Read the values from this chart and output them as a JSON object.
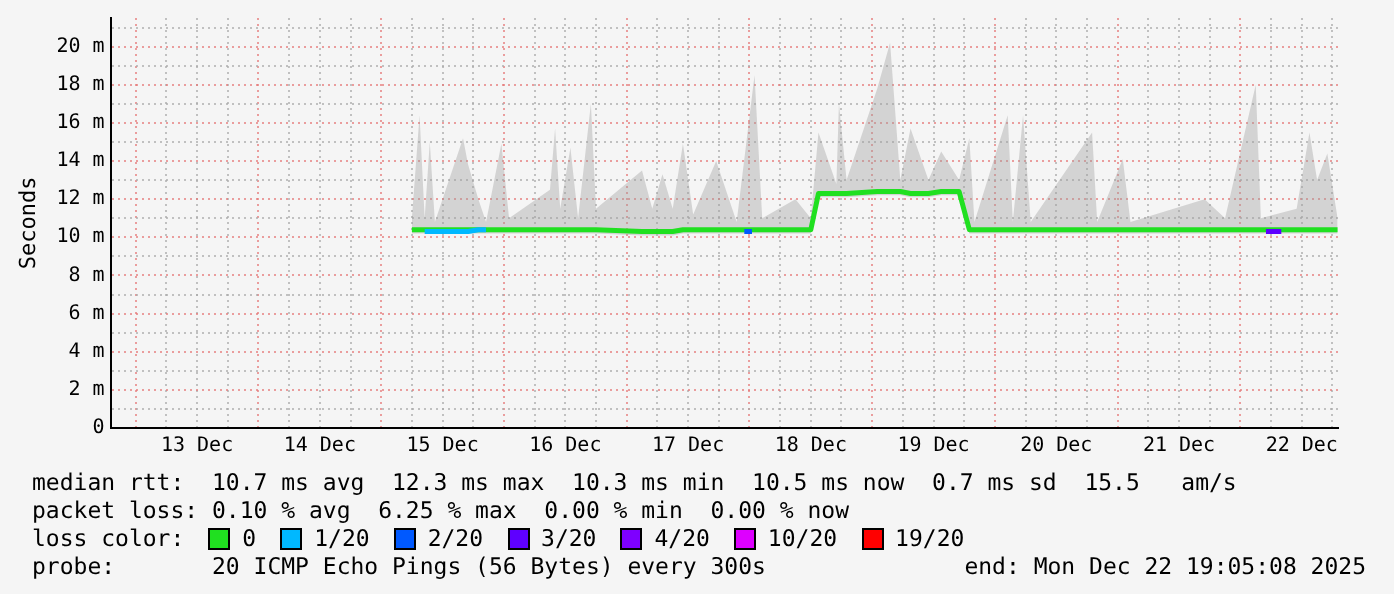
{
  "chart_data": {
    "type": "line",
    "ylabel": "Seconds",
    "legend_title": "loss color:",
    "legend": "bottom",
    "grid": true,
    "marker": "none",
    "line_style": "solid",
    "x": [
      "2025-12-15T06:00",
      "2025-12-15T07:30",
      "2025-12-15T08:30",
      "2025-12-15T09:30",
      "2025-12-15T10:30",
      "2025-12-15T16:00",
      "2025-12-15T17:00",
      "2025-12-15T19:00",
      "2025-12-15T20:30",
      "2025-12-15T23:30",
      "2025-12-16T01:00",
      "2025-12-16T09:00",
      "2025-12-16T10:00",
      "2025-12-16T11:00",
      "2025-12-16T13:00",
      "2025-12-16T14:30",
      "2025-12-16T17:00",
      "2025-12-16T18:00",
      "2025-12-17T03:00",
      "2025-12-17T05:00",
      "2025-12-17T07:00",
      "2025-12-17T09:00",
      "2025-12-17T11:00",
      "2025-12-17T13:00",
      "2025-12-17T17:30",
      "2025-12-17T21:30",
      "2025-12-18T01:00",
      "2025-12-18T02:30",
      "2025-12-18T09:00",
      "2025-12-18T12:00",
      "2025-12-18T13:30",
      "2025-12-18T17:00",
      "2025-12-18T17:30",
      "2025-12-18T19:00",
      "2025-12-19T01:00",
      "2025-12-19T03:30",
      "2025-12-19T05:30",
      "2025-12-19T07:30",
      "2025-12-19T11:00",
      "2025-12-19T13:30",
      "2025-12-19T17:00",
      "2025-12-19T19:00",
      "2025-12-19T20:00",
      "2025-12-20T02:30",
      "2025-12-20T03:30",
      "2025-12-20T05:30",
      "2025-12-20T07:00",
      "2025-12-20T19:00",
      "2025-12-20T20:00",
      "2025-12-21T01:00",
      "2025-12-21T02:30",
      "2025-12-21T17:00",
      "2025-12-21T21:00",
      "2025-12-22T03:00",
      "2025-12-22T04:00",
      "2025-12-22T11:00",
      "2025-12-22T13:30",
      "2025-12-22T15:00",
      "2025-12-22T17:00",
      "2025-12-22T19:00"
    ],
    "series": [
      {
        "name": "0",
        "color": "#20e020",
        "values": [
          10.4,
          10.4,
          10.4,
          10.4,
          10.4,
          10.4,
          10.4,
          10.4,
          10.4,
          10.4,
          10.4,
          10.4,
          10.4,
          10.4,
          10.4,
          10.4,
          10.4,
          10.4,
          10.3,
          10.3,
          10.3,
          10.3,
          10.4,
          10.4,
          10.4,
          10.4,
          10.4,
          10.4,
          10.4,
          10.4,
          12.3,
          12.3,
          12.3,
          12.3,
          12.4,
          12.4,
          12.4,
          12.3,
          12.3,
          12.4,
          12.4,
          10.4,
          10.4,
          10.4,
          10.4,
          10.4,
          10.4,
          10.4,
          10.4,
          10.4,
          10.4,
          10.4,
          10.4,
          10.4,
          10.4,
          10.4,
          10.4,
          10.4,
          10.4,
          10.4
        ],
        "lower": [
          10.2,
          10.2,
          10.2,
          10.2,
          10.2,
          10.2,
          10.2,
          10.2,
          10.2,
          10.2,
          10.2,
          10.2,
          10.2,
          10.2,
          10.2,
          10.2,
          10.2,
          10.2,
          10.1,
          10.1,
          10.1,
          10.1,
          10.2,
          10.2,
          10.2,
          10.2,
          10.2,
          10.2,
          10.2,
          10.2,
          12.1,
          12.1,
          12.1,
          12.1,
          12.2,
          12.2,
          12.2,
          12.1,
          12.1,
          12.2,
          12.2,
          10.2,
          10.2,
          10.2,
          10.2,
          10.2,
          10.2,
          10.2,
          10.2,
          10.2,
          10.2,
          10.2,
          10.2,
          10.2,
          10.2,
          10.2,
          10.2,
          10.2,
          10.2,
          10.2
        ],
        "upper": [
          11.0,
          16.4,
          11.0,
          15.0,
          10.8,
          15.2,
          13.8,
          12.0,
          10.8,
          14.9,
          11.0,
          12.5,
          15.7,
          11.5,
          14.7,
          11.0,
          17.0,
          11.5,
          13.5,
          11.5,
          13.3,
          11.5,
          14.9,
          11.2,
          14.0,
          10.8,
          18.5,
          11.0,
          12.0,
          11.0,
          15.5,
          12.8,
          17.0,
          13.0,
          17.8,
          20.2,
          13.0,
          15.7,
          13.0,
          14.5,
          13.0,
          15.2,
          10.8,
          16.4,
          10.8,
          16.4,
          10.8,
          15.5,
          10.8,
          14.1,
          10.8,
          12.0,
          11.0,
          18.0,
          11.0,
          11.5,
          15.5,
          13.0,
          14.4,
          11.0
        ]
      },
      {
        "name": "1/20",
        "color": "#00b8ff",
        "x": [
          "2025-12-15T08:30",
          "2025-12-15T09:30",
          "2025-12-15T10:30",
          "2025-12-15T16:00",
          "2025-12-15T17:00",
          "2025-12-15T19:00",
          "2025-12-15T20:30"
        ],
        "values": [
          10.3,
          10.3,
          10.3,
          10.3,
          10.3,
          10.4,
          10.4
        ]
      },
      {
        "name": "2/20",
        "color": "#0059ff",
        "x": [
          "2025-12-17T23:00",
          "2025-12-18T00:30"
        ],
        "values": [
          10.3,
          10.3
        ]
      },
      {
        "name": "3/20",
        "color": "#5e00ff",
        "x": [
          "2025-12-22T05:00",
          "2025-12-22T08:00"
        ],
        "values": [
          10.3,
          10.3
        ]
      },
      {
        "name": "4/20",
        "color": "#7e00ff",
        "values": [
          null,
          null,
          null,
          null,
          null,
          null,
          null,
          null,
          null,
          null,
          null,
          null,
          null,
          null,
          null,
          null,
          null,
          null,
          null,
          null,
          null,
          null,
          null,
          null,
          null,
          null,
          null,
          null,
          null,
          null,
          null,
          null,
          null,
          null,
          null,
          null,
          null,
          null,
          null,
          null,
          null,
          null,
          null,
          null,
          null,
          null,
          null,
          null,
          null,
          null,
          null,
          null,
          null,
          null,
          null,
          null,
          null,
          null,
          null,
          null
        ]
      },
      {
        "name": "10/20",
        "color": "#dd00ff",
        "values": [
          null,
          null,
          null,
          null,
          null,
          null,
          null,
          null,
          null,
          null,
          null,
          null,
          null,
          null,
          null,
          null,
          null,
          null,
          null,
          null,
          null,
          null,
          null,
          null,
          null,
          null,
          null,
          null,
          null,
          null,
          null,
          null,
          null,
          null,
          null,
          null,
          null,
          null,
          null,
          null,
          null,
          null,
          null,
          null,
          null,
          null,
          null,
          null,
          null,
          null,
          null,
          null,
          null,
          null,
          null,
          null,
          null,
          null,
          null,
          null
        ]
      },
      {
        "name": "19/20",
        "color": "#ff0000",
        "values": [
          null,
          null,
          null,
          null,
          null,
          null,
          null,
          null,
          null,
          null,
          null,
          null,
          null,
          null,
          null,
          null,
          null,
          null,
          null,
          null,
          null,
          null,
          null,
          null,
          null,
          null,
          null,
          null,
          null,
          null,
          null,
          null,
          null,
          null,
          null,
          null,
          null,
          null,
          null,
          null,
          null,
          null,
          null,
          null,
          null,
          null,
          null,
          null,
          null,
          null,
          null,
          null,
          null,
          null,
          null,
          null,
          null,
          null,
          null,
          null
        ]
      }
    ],
    "xlim": [
      "2025-12-12T19:05",
      "2025-12-22T19:05"
    ],
    "xticks": [
      {
        "value": "2025-12-13T00:00",
        "label": null
      },
      {
        "value": "2025-12-13T06:00",
        "label": null
      },
      {
        "value": "2025-12-13T12:00",
        "label": "13 Dec"
      },
      {
        "value": "2025-12-13T18:00",
        "label": null
      },
      {
        "value": "2025-12-14T00:00",
        "label": null
      },
      {
        "value": "2025-12-14T06:00",
        "label": null
      },
      {
        "value": "2025-12-14T12:00",
        "label": "14 Dec"
      },
      {
        "value": "2025-12-14T18:00",
        "label": null
      },
      {
        "value": "2025-12-15T00:00",
        "label": null
      },
      {
        "value": "2025-12-15T06:00",
        "label": null
      },
      {
        "value": "2025-12-15T12:00",
        "label": "15 Dec"
      },
      {
        "value": "2025-12-15T18:00",
        "label": null
      },
      {
        "value": "2025-12-16T00:00",
        "label": null
      },
      {
        "value": "2025-12-16T06:00",
        "label": null
      },
      {
        "value": "2025-12-16T12:00",
        "label": "16 Dec"
      },
      {
        "value": "2025-12-16T18:00",
        "label": null
      },
      {
        "value": "2025-12-17T00:00",
        "label": null
      },
      {
        "value": "2025-12-17T06:00",
        "label": null
      },
      {
        "value": "2025-12-17T12:00",
        "label": "17 Dec"
      },
      {
        "value": "2025-12-17T18:00",
        "label": null
      },
      {
        "value": "2025-12-18T00:00",
        "label": null
      },
      {
        "value": "2025-12-18T06:00",
        "label": null
      },
      {
        "value": "2025-12-18T12:00",
        "label": "18 Dec"
      },
      {
        "value": "2025-12-18T18:00",
        "label": null
      },
      {
        "value": "2025-12-19T00:00",
        "label": null
      },
      {
        "value": "2025-12-19T06:00",
        "label": null
      },
      {
        "value": "2025-12-19T12:00",
        "label": "19 Dec"
      },
      {
        "value": "2025-12-19T18:00",
        "label": null
      },
      {
        "value": "2025-12-20T00:00",
        "label": null
      },
      {
        "value": "2025-12-20T06:00",
        "label": null
      },
      {
        "value": "2025-12-20T12:00",
        "label": "20 Dec"
      },
      {
        "value": "2025-12-20T18:00",
        "label": null
      },
      {
        "value": "2025-12-21T00:00",
        "label": null
      },
      {
        "value": "2025-12-21T06:00",
        "label": null
      },
      {
        "value": "2025-12-21T12:00",
        "label": "21 Dec"
      },
      {
        "value": "2025-12-21T18:00",
        "label": null
      },
      {
        "value": "2025-12-22T00:00",
        "label": null
      },
      {
        "value": "2025-12-22T06:00",
        "label": null
      },
      {
        "value": "2025-12-22T12:00",
        "label": "22 Dec"
      },
      {
        "value": "2025-12-22T18:00",
        "label": null
      }
    ],
    "ylim": [
      0,
      21.5
    ],
    "yticks": [
      {
        "value": 0,
        "label": "0"
      },
      {
        "value": 1,
        "label": null
      },
      {
        "value": 2,
        "label": "2 m"
      },
      {
        "value": 3,
        "label": null
      },
      {
        "value": 4,
        "label": "4 m"
      },
      {
        "value": 5,
        "label": null
      },
      {
        "value": 6,
        "label": "6 m"
      },
      {
        "value": 7,
        "label": null
      },
      {
        "value": 8,
        "label": "8 m"
      },
      {
        "value": 9,
        "label": null
      },
      {
        "value": 10,
        "label": "10 m"
      },
      {
        "value": 11,
        "label": null
      },
      {
        "value": 12,
        "label": "12 m"
      },
      {
        "value": 13,
        "label": null
      },
      {
        "value": 14,
        "label": "14 m"
      },
      {
        "value": 15,
        "label": null
      },
      {
        "value": 16,
        "label": "16 m"
      },
      {
        "value": 17,
        "label": null
      },
      {
        "value": 18,
        "label": "18 m"
      },
      {
        "value": 19,
        "label": null
      },
      {
        "value": 20,
        "label": "20 m"
      },
      {
        "value": 21,
        "label": null
      }
    ],
    "annotations": [
      "median rtt:  10.7 ms avg  12.3 ms max  10.3 ms min  10.5 ms now  0.7 ms sd  15.5   am/s",
      "packet loss: 0.10 % avg  6.25 % max  0.00 % min  0.00 % now",
      "probe:       20 ICMP Echo Pings (56 Bytes) every 300s",
      "end: Mon Dec 22 19:05:08 2025"
    ]
  }
}
